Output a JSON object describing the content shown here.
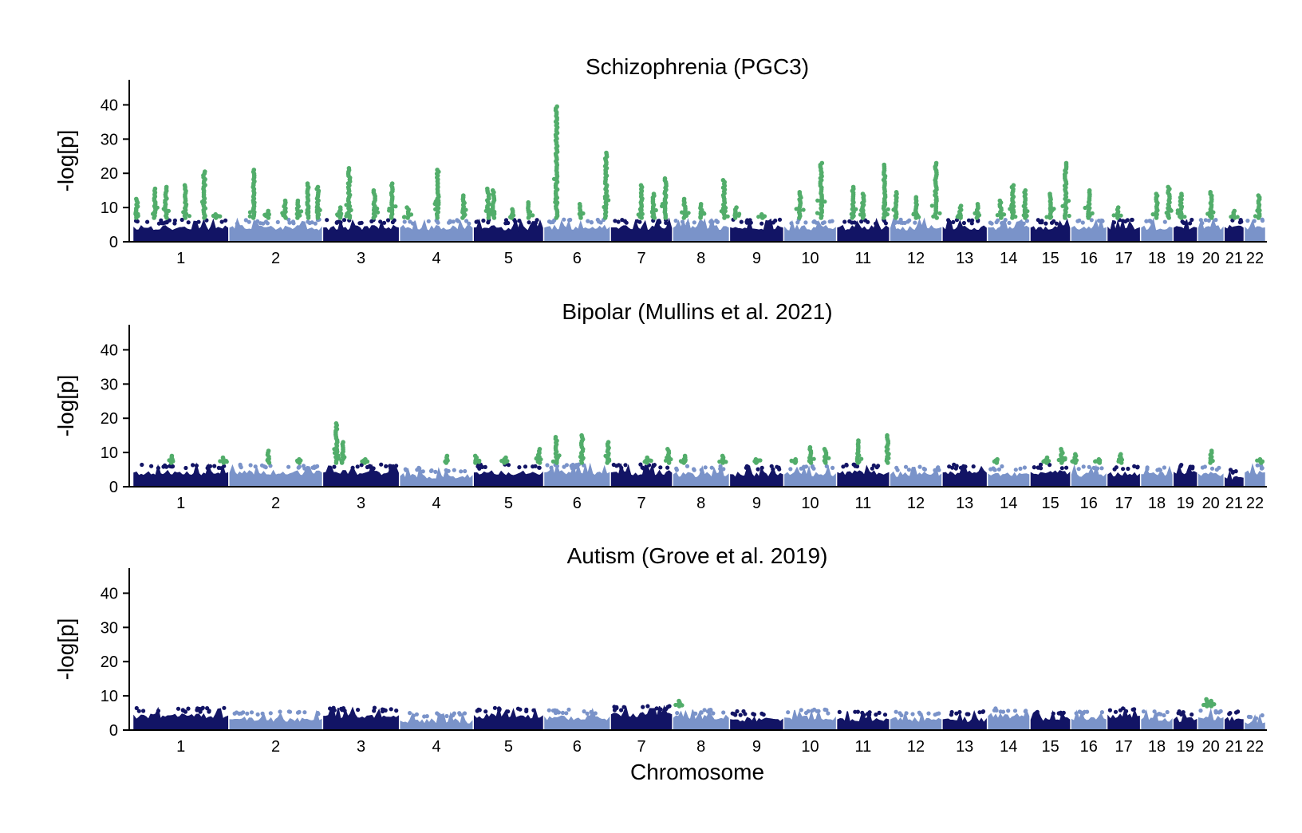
{
  "figure": {
    "xlabel": "Chromosome",
    "ylabel": "-log[p]"
  },
  "colors": {
    "chrom_odd": "#121465",
    "chrom_even": "#7a93c9",
    "significant": "#52ad6a"
  },
  "chart_data": [
    {
      "type": "scatter",
      "subtype": "manhattan",
      "title": "Schizophrenia (PGC3)",
      "ylabel": "-log[p]",
      "xlabel": "",
      "ylim": [
        0,
        45
      ],
      "yticks": [
        "0",
        "10",
        "20",
        "30",
        "40"
      ],
      "chromosomes": [
        "1",
        "2",
        "3",
        "4",
        "5",
        "6",
        "7",
        "8",
        "9",
        "10",
        "11",
        "12",
        "13",
        "14",
        "15",
        "16",
        "17",
        "18",
        "19",
        "20",
        "21",
        "22"
      ],
      "baseline_peak": [
        6.5,
        6.5,
        6.5,
        6.5,
        6.5,
        6.5,
        6.5,
        6.5,
        6.5,
        6.5,
        6.5,
        6.5,
        6.5,
        6.5,
        6.5,
        6.5,
        6.5,
        6.5,
        6.5,
        6.5,
        6.5,
        6.5
      ],
      "significance_threshold": 7.3,
      "peaks": [
        {
          "chr": "1",
          "pos": 0.03,
          "value": 12.5
        },
        {
          "chr": "1",
          "pos": 0.22,
          "value": 15.5
        },
        {
          "chr": "1",
          "pos": 0.34,
          "value": 16
        },
        {
          "chr": "1",
          "pos": 0.55,
          "value": 16.5
        },
        {
          "chr": "1",
          "pos": 0.75,
          "value": 20.5
        },
        {
          "chr": "1",
          "pos": 0.88,
          "value": 8
        },
        {
          "chr": "2",
          "pos": 0.26,
          "value": 21
        },
        {
          "chr": "2",
          "pos": 0.42,
          "value": 9
        },
        {
          "chr": "2",
          "pos": 0.6,
          "value": 12
        },
        {
          "chr": "2",
          "pos": 0.74,
          "value": 12
        },
        {
          "chr": "2",
          "pos": 0.85,
          "value": 17
        },
        {
          "chr": "2",
          "pos": 0.96,
          "value": 16
        },
        {
          "chr": "3",
          "pos": 0.22,
          "value": 10
        },
        {
          "chr": "3",
          "pos": 0.34,
          "value": 21.5
        },
        {
          "chr": "3",
          "pos": 0.68,
          "value": 15
        },
        {
          "chr": "3",
          "pos": 0.92,
          "value": 17
        },
        {
          "chr": "4",
          "pos": 0.1,
          "value": 10
        },
        {
          "chr": "4",
          "pos": 0.52,
          "value": 21
        },
        {
          "chr": "4",
          "pos": 0.88,
          "value": 13.5
        },
        {
          "chr": "5",
          "pos": 0.2,
          "value": 15.5
        },
        {
          "chr": "5",
          "pos": 0.28,
          "value": 15
        },
        {
          "chr": "5",
          "pos": 0.55,
          "value": 9.5
        },
        {
          "chr": "5",
          "pos": 0.8,
          "value": 11.5
        },
        {
          "chr": "6",
          "pos": 0.18,
          "value": 39.5
        },
        {
          "chr": "6",
          "pos": 0.55,
          "value": 11
        },
        {
          "chr": "6",
          "pos": 0.95,
          "value": 26
        },
        {
          "chr": "7",
          "pos": 0.5,
          "value": 16.5
        },
        {
          "chr": "7",
          "pos": 0.7,
          "value": 14
        },
        {
          "chr": "7",
          "pos": 0.9,
          "value": 18.5
        },
        {
          "chr": "8",
          "pos": 0.2,
          "value": 12.5
        },
        {
          "chr": "8",
          "pos": 0.5,
          "value": 11
        },
        {
          "chr": "8",
          "pos": 0.92,
          "value": 18
        },
        {
          "chr": "9",
          "pos": 0.1,
          "value": 10
        },
        {
          "chr": "9",
          "pos": 0.6,
          "value": 8
        },
        {
          "chr": "10",
          "pos": 0.3,
          "value": 14.5
        },
        {
          "chr": "10",
          "pos": 0.72,
          "value": 23
        },
        {
          "chr": "11",
          "pos": 0.3,
          "value": 16
        },
        {
          "chr": "11",
          "pos": 0.5,
          "value": 14
        },
        {
          "chr": "11",
          "pos": 0.92,
          "value": 22.5
        },
        {
          "chr": "12",
          "pos": 0.1,
          "value": 14.5
        },
        {
          "chr": "12",
          "pos": 0.5,
          "value": 13
        },
        {
          "chr": "12",
          "pos": 0.9,
          "value": 23
        },
        {
          "chr": "13",
          "pos": 0.4,
          "value": 10.5
        },
        {
          "chr": "13",
          "pos": 0.8,
          "value": 11
        },
        {
          "chr": "14",
          "pos": 0.3,
          "value": 12
        },
        {
          "chr": "14",
          "pos": 0.6,
          "value": 16.5
        },
        {
          "chr": "14",
          "pos": 0.9,
          "value": 15
        },
        {
          "chr": "15",
          "pos": 0.5,
          "value": 14
        },
        {
          "chr": "15",
          "pos": 0.9,
          "value": 23
        },
        {
          "chr": "16",
          "pos": 0.5,
          "value": 15
        },
        {
          "chr": "17",
          "pos": 0.3,
          "value": 10
        },
        {
          "chr": "18",
          "pos": 0.5,
          "value": 14
        },
        {
          "chr": "18",
          "pos": 0.9,
          "value": 16
        },
        {
          "chr": "19",
          "pos": 0.3,
          "value": 14
        },
        {
          "chr": "20",
          "pos": 0.5,
          "value": 14.5
        },
        {
          "chr": "21",
          "pos": 0.5,
          "value": 9
        },
        {
          "chr": "22",
          "pos": 0.7,
          "value": 13.5
        }
      ]
    },
    {
      "type": "scatter",
      "subtype": "manhattan",
      "title": "Bipolar (Mullins et al. 2021)",
      "ylabel": "-log[p]",
      "xlabel": "",
      "ylim": [
        0,
        45
      ],
      "yticks": [
        "0",
        "10",
        "20",
        "30",
        "40"
      ],
      "chromosomes": [
        "1",
        "2",
        "3",
        "4",
        "5",
        "6",
        "7",
        "8",
        "9",
        "10",
        "11",
        "12",
        "13",
        "14",
        "15",
        "16",
        "17",
        "18",
        "19",
        "20",
        "21",
        "22"
      ],
      "baseline_peak": [
        6.5,
        6.5,
        6.5,
        5.5,
        6.5,
        6.5,
        6.5,
        6.0,
        6.0,
        6.0,
        6.5,
        6.0,
        6.5,
        6.0,
        6.5,
        6.0,
        6.0,
        6.0,
        6.5,
        6.0,
        5.0,
        6.5
      ],
      "significance_threshold": 7.3,
      "peaks": [
        {
          "chr": "1",
          "pos": 0.4,
          "value": 9
        },
        {
          "chr": "1",
          "pos": 0.95,
          "value": 8.5
        },
        {
          "chr": "2",
          "pos": 0.42,
          "value": 10.5
        },
        {
          "chr": "2",
          "pos": 0.75,
          "value": 8
        },
        {
          "chr": "3",
          "pos": 0.17,
          "value": 18.5
        },
        {
          "chr": "3",
          "pos": 0.25,
          "value": 13
        },
        {
          "chr": "3",
          "pos": 0.55,
          "value": 8
        },
        {
          "chr": "4",
          "pos": 0.65,
          "value": 9
        },
        {
          "chr": "5",
          "pos": 0.02,
          "value": 9
        },
        {
          "chr": "5",
          "pos": 0.45,
          "value": 8.5
        },
        {
          "chr": "5",
          "pos": 0.95,
          "value": 11
        },
        {
          "chr": "6",
          "pos": 0.18,
          "value": 14.5
        },
        {
          "chr": "6",
          "pos": 0.58,
          "value": 15
        },
        {
          "chr": "6",
          "pos": 0.98,
          "value": 13
        },
        {
          "chr": "7",
          "pos": 0.6,
          "value": 8.5
        },
        {
          "chr": "7",
          "pos": 0.95,
          "value": 11
        },
        {
          "chr": "8",
          "pos": 0.2,
          "value": 9
        },
        {
          "chr": "8",
          "pos": 0.9,
          "value": 9
        },
        {
          "chr": "9",
          "pos": 0.5,
          "value": 8
        },
        {
          "chr": "10",
          "pos": 0.2,
          "value": 8
        },
        {
          "chr": "10",
          "pos": 0.5,
          "value": 11.5
        },
        {
          "chr": "10",
          "pos": 0.8,
          "value": 11
        },
        {
          "chr": "11",
          "pos": 0.4,
          "value": 13.5
        },
        {
          "chr": "11",
          "pos": 0.98,
          "value": 15
        },
        {
          "chr": "14",
          "pos": 0.2,
          "value": 8
        },
        {
          "chr": "15",
          "pos": 0.4,
          "value": 8.5
        },
        {
          "chr": "15",
          "pos": 0.8,
          "value": 11
        },
        {
          "chr": "16",
          "pos": 0.1,
          "value": 9.5
        },
        {
          "chr": "16",
          "pos": 0.8,
          "value": 8
        },
        {
          "chr": "17",
          "pos": 0.4,
          "value": 9.5
        },
        {
          "chr": "20",
          "pos": 0.5,
          "value": 10.5
        },
        {
          "chr": "22",
          "pos": 0.8,
          "value": 8
        }
      ]
    },
    {
      "type": "scatter",
      "subtype": "manhattan",
      "title": "Autism (Grove et al. 2019)",
      "ylabel": "-log[p]",
      "xlabel": "Chromosome",
      "ylim": [
        0,
        45
      ],
      "yticks": [
        "0",
        "10",
        "20",
        "30",
        "40"
      ],
      "chromosomes": [
        "1",
        "2",
        "3",
        "4",
        "5",
        "6",
        "7",
        "8",
        "9",
        "10",
        "11",
        "12",
        "13",
        "14",
        "15",
        "16",
        "17",
        "18",
        "19",
        "20",
        "21",
        "22"
      ],
      "baseline_peak": [
        6.5,
        5.5,
        6.5,
        5.0,
        6.5,
        6.0,
        7.0,
        6.0,
        5.5,
        6.0,
        5.5,
        5.5,
        5.5,
        6.5,
        5.5,
        5.5,
        6.5,
        5.5,
        5.5,
        6.0,
        5.5,
        4.5
      ],
      "significance_threshold": 7.3,
      "peaks": [
        {
          "chr": "8",
          "pos": 0.1,
          "value": 8.5
        },
        {
          "chr": "20",
          "pos": 0.35,
          "value": 9
        },
        {
          "chr": "20",
          "pos": 0.5,
          "value": 8.5
        }
      ]
    }
  ],
  "chromosome_sizes_mb": [
    249,
    243,
    198,
    190,
    181,
    171,
    159,
    145,
    138,
    134,
    135,
    133,
    114,
    107,
    102,
    90,
    83,
    80,
    59,
    64,
    47,
    51
  ]
}
